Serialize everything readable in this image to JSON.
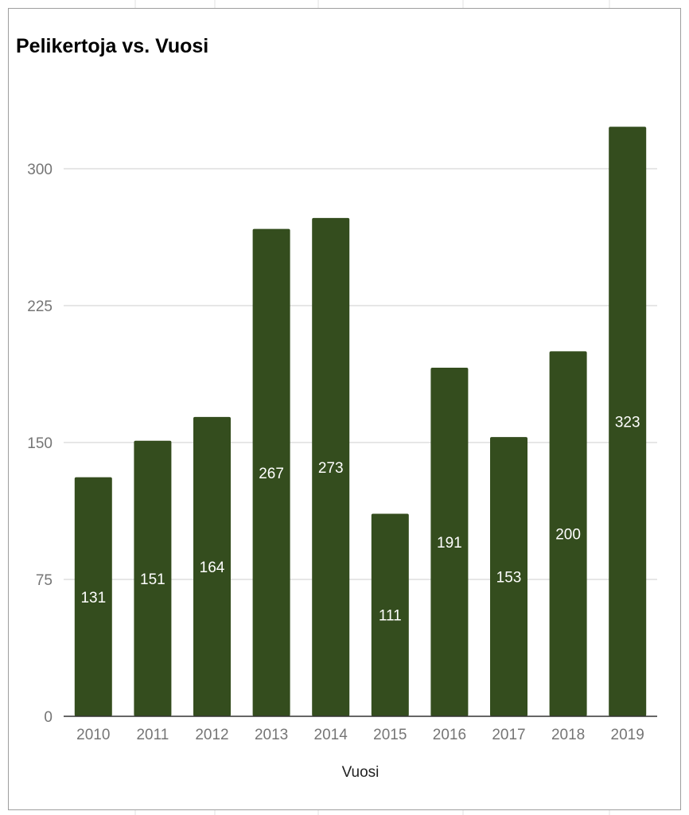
{
  "chart_data": {
    "type": "bar",
    "title": "Pelikertoja vs. Vuosi",
    "xlabel": "Vuosi",
    "ylabel": "",
    "categories": [
      "2010",
      "2011",
      "2012",
      "2013",
      "2014",
      "2015",
      "2016",
      "2017",
      "2018",
      "2019"
    ],
    "values": [
      131,
      151,
      164,
      267,
      273,
      111,
      191,
      153,
      200,
      323
    ],
    "yticks": [
      0,
      75,
      150,
      225,
      300
    ],
    "ylim": [
      0,
      345
    ],
    "grid": true,
    "legend": "none",
    "colors": {
      "bar": "#344d1e",
      "grid": "#cccccc",
      "axis": "#333333",
      "label": "#ffffff"
    }
  }
}
